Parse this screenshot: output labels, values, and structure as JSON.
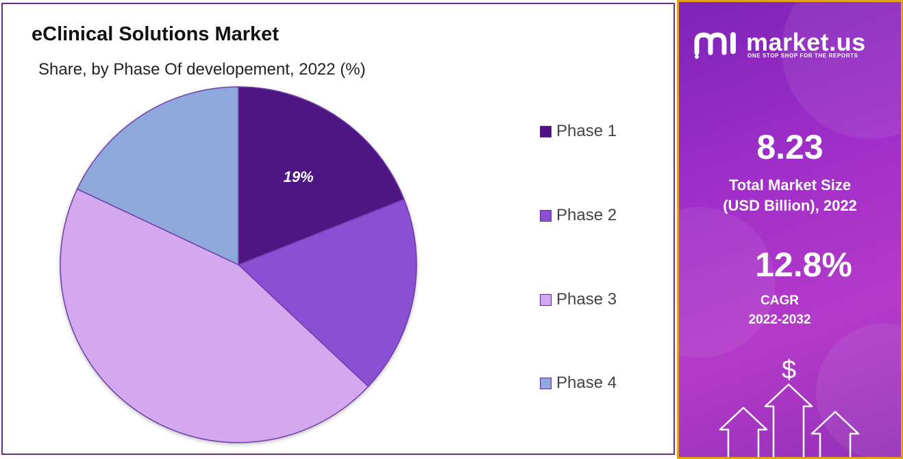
{
  "chart": {
    "title": "eClinical Solutions Market",
    "subtitle": "Share, by Phase Of developement, 2022 (%)"
  },
  "chart_data": {
    "type": "pie",
    "title": "eClinical Solutions Market",
    "subtitle": "Share, by Phase Of developement, 2022 (%)",
    "categories": [
      "Phase 1",
      "Phase 2",
      "Phase 3",
      "Phase 4"
    ],
    "values": [
      19,
      18,
      45,
      18
    ],
    "colors": [
      "#4e1482",
      "#8b4fd4",
      "#d3a8ef",
      "#8fa8dc"
    ],
    "data_labels": [
      "19%",
      "",
      "",
      ""
    ],
    "legend": "right"
  },
  "side_panel": {
    "brand": "market.us",
    "tagline": "ONE STOP SHOP FOR THE REPORTS",
    "market_size_value": "8.23",
    "market_size_label_line1": "Total Market Size",
    "market_size_label_line2": "(USD Billion), 2022",
    "cagr_value": "12.8%",
    "cagr_label_line1": "CAGR",
    "cagr_label_line2": "2022-2032",
    "dollar_symbol": "$"
  },
  "icons": {
    "logo": "market-us-logo-icon",
    "dollar": "dollar-icon",
    "growth_arrows": "growth-arrows-icon"
  }
}
